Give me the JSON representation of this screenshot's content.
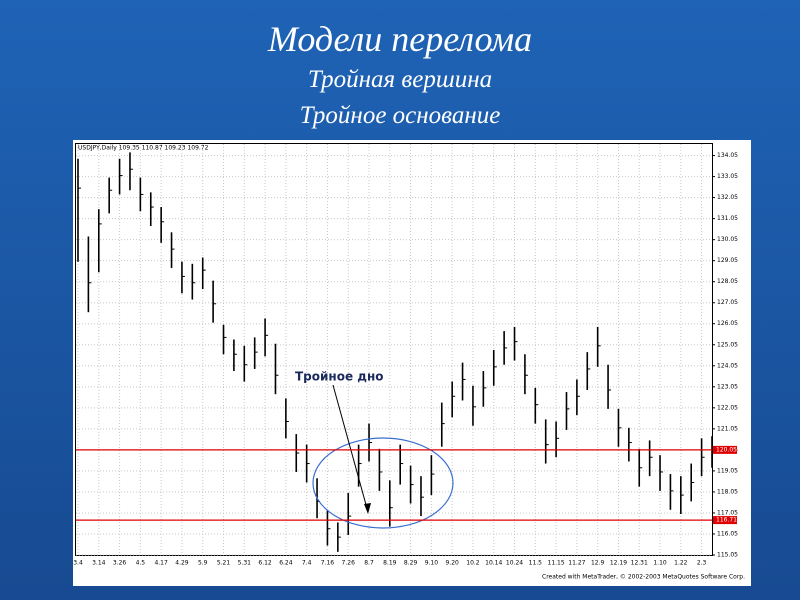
{
  "title": "Модели перелома",
  "subtitle1": "Тройная вершина",
  "subtitle2": "Тройное основание",
  "chart_data": {
    "type": "ohlc",
    "header": "USDJPY,Daily  109.35 110.87 109.23 109.72",
    "footer": "Created with MetaTrader, © 2002-2003 MetaQuotes Software Corp.",
    "annotation": "Тройное дно",
    "color": "#000000",
    "level_color": "#e00000",
    "grid": true,
    "categories": [
      "3.4",
      null,
      "3.14",
      null,
      "3.26",
      null,
      "4.5",
      null,
      "4.17",
      null,
      "4.29",
      null,
      "5.9",
      null,
      "5.21",
      null,
      "5.31",
      null,
      "6.12",
      null,
      "6.24",
      null,
      "7.4",
      null,
      "7.16",
      null,
      "7.26",
      null,
      "8.7",
      null,
      "8.19",
      null,
      "8.29",
      null,
      "9.10",
      null,
      "9.20",
      null,
      "10.2",
      null,
      "10.14",
      null,
      "10.24",
      null,
      "11.5",
      null,
      "11.15",
      null,
      "11.27",
      null,
      "12.9",
      null,
      "12.19",
      null,
      "12.31",
      null,
      "1.10",
      null,
      "1.22",
      null,
      "2.3",
      null
    ],
    "high": [
      133.9,
      130.2,
      131.5,
      133.0,
      133.9,
      134.2,
      133.0,
      132.3,
      131.6,
      130.4,
      129.0,
      128.9,
      129.2,
      128.1,
      126.0,
      125.3,
      125.0,
      125.4,
      126.3,
      125.1,
      122.5,
      120.8,
      120.3,
      118.7,
      117.2,
      116.6,
      118.0,
      120.3,
      121.3,
      120.1,
      118.6,
      120.3,
      119.3,
      118.8,
      119.8,
      122.3,
      123.3,
      124.2,
      123.1,
      123.8,
      124.8,
      125.7,
      125.9,
      124.6,
      123.0,
      121.5,
      121.4,
      122.8,
      123.4,
      124.7,
      125.9,
      124.1,
      122.0,
      121.1,
      120.1,
      120.5,
      119.8,
      118.9,
      118.8,
      119.4,
      120.6,
      120.7
    ],
    "low": [
      129.0,
      126.6,
      128.5,
      131.3,
      132.2,
      132.4,
      131.4,
      130.7,
      129.9,
      128.7,
      127.5,
      127.2,
      127.7,
      126.1,
      124.6,
      123.8,
      123.3,
      123.9,
      124.5,
      122.7,
      120.6,
      119.0,
      118.5,
      116.8,
      115.5,
      115.2,
      116.0,
      118.3,
      119.5,
      118.1,
      116.4,
      118.4,
      117.5,
      116.9,
      117.9,
      120.2,
      121.6,
      122.4,
      121.2,
      122.1,
      123.1,
      124.1,
      124.3,
      122.7,
      121.3,
      119.4,
      119.7,
      121.0,
      121.7,
      122.9,
      124.0,
      122.0,
      120.2,
      119.5,
      118.3,
      118.8,
      118.1,
      117.2,
      117.0,
      117.6,
      118.8,
      119.2
    ],
    "close": [
      132.5,
      128.0,
      130.8,
      132.4,
      133.1,
      133.4,
      132.2,
      131.6,
      130.9,
      129.6,
      128.3,
      128.0,
      128.6,
      127.0,
      125.4,
      124.6,
      124.1,
      124.7,
      125.5,
      123.6,
      121.4,
      119.9,
      119.4,
      117.6,
      116.3,
      115.9,
      116.9,
      119.4,
      120.4,
      119.0,
      117.3,
      119.4,
      118.4,
      117.8,
      118.9,
      121.3,
      122.6,
      123.4,
      122.1,
      123.0,
      124.0,
      124.9,
      125.2,
      123.6,
      122.2,
      120.3,
      120.6,
      122.0,
      122.6,
      123.9,
      125.0,
      122.9,
      121.1,
      120.4,
      119.2,
      119.7,
      119.0,
      118.1,
      117.9,
      118.5,
      119.7,
      120.0
    ],
    "levels": [
      {
        "value": 120.05,
        "label": "120.05"
      },
      {
        "value": 116.71,
        "label": "116.71"
      }
    ],
    "ylim": [
      115.05,
      134.6
    ],
    "yticks": [
      115.05,
      116.05,
      117.05,
      118.05,
      119.05,
      120.05,
      121.05,
      122.05,
      123.05,
      124.05,
      125.05,
      126.05,
      127.05,
      128.05,
      129.05,
      130.05,
      131.05,
      132.05,
      133.05,
      134.05
    ]
  }
}
